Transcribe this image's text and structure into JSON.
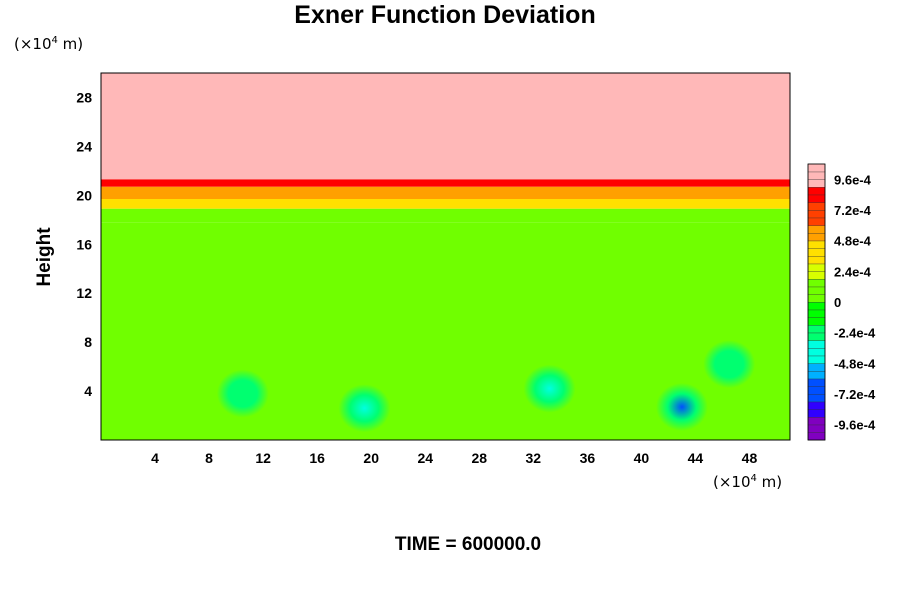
{
  "chart_data": {
    "type": "heatmap",
    "title": "Exner Function Deviation",
    "ylabel": "Height",
    "x_unit_prefix": "(×10",
    "x_unit_exp": "4",
    "x_unit_suffix": " m)",
    "y_unit_prefix": "(×10",
    "y_unit_exp": "4",
    "y_unit_suffix": " m)",
    "xlim": [
      0,
      51
    ],
    "ylim": [
      0,
      30
    ],
    "x_ticks": [
      4,
      8,
      12,
      16,
      20,
      24,
      28,
      32,
      36,
      40,
      44,
      48
    ],
    "y_ticks": [
      4,
      8,
      12,
      16,
      20,
      24,
      28
    ],
    "x_tick_labels": [
      "4",
      "8",
      "12",
      "16",
      "20",
      "24",
      "28",
      "32",
      "36",
      "40",
      "44",
      "48"
    ],
    "y_tick_labels": [
      "4",
      "8",
      "12",
      "16",
      "20",
      "24",
      "28"
    ],
    "colorbar": {
      "min": -0.00108,
      "max": 0.00108,
      "tick_values": [
        0.00096,
        0.00072,
        0.00048,
        0.00024,
        0,
        -0.00024,
        -0.00048,
        -0.00072,
        -0.00096
      ],
      "tick_labels": [
        "9.6e-4",
        "7.2e-4",
        "4.8e-4",
        "2.4e-4",
        "0",
        "-2.4e-4",
        "-4.8e-4",
        "-7.2e-4",
        "-9.6e-4"
      ],
      "colors": [
        "#8000c0",
        "#3000ff",
        "#0050ff",
        "#00b0ff",
        "#00ffe0",
        "#00ff70",
        "#00ff00",
        "#70ff00",
        "#d8ff00",
        "#ffe000",
        "#ffa000",
        "#ff4000",
        "#ff0000",
        "#ffb8b8"
      ]
    },
    "layers": [
      {
        "name": "upper",
        "y_from": 21.3,
        "y_to": 30,
        "value": 0.0011
      },
      {
        "name": "red-band",
        "y_from": 20.7,
        "y_to": 21.3,
        "value": 0.00085
      },
      {
        "name": "orange-band",
        "y_from": 19.7,
        "y_to": 20.7,
        "value": 0.00058
      },
      {
        "name": "yellow-band",
        "y_from": 18.9,
        "y_to": 19.7,
        "value": 0.00035
      },
      {
        "name": "yellow-green-band",
        "y_from": 17.8,
        "y_to": 18.9,
        "value": 0.00012
      },
      {
        "name": "lower",
        "y_from": 0,
        "y_to": 17.8,
        "value": 0
      }
    ],
    "anomalies": [
      {
        "x": 10.5,
        "y": 3.8,
        "value": -0.0003
      },
      {
        "x": 19.5,
        "y": 2.6,
        "value": -0.00045
      },
      {
        "x": 33.2,
        "y": 4.2,
        "value": -0.00032
      },
      {
        "x": 43.0,
        "y": 2.7,
        "value": -0.00062
      },
      {
        "x": 46.5,
        "y": 6.2,
        "value": -0.00025
      }
    ]
  },
  "footer": {
    "time_label": "TIME = 600000.0"
  }
}
